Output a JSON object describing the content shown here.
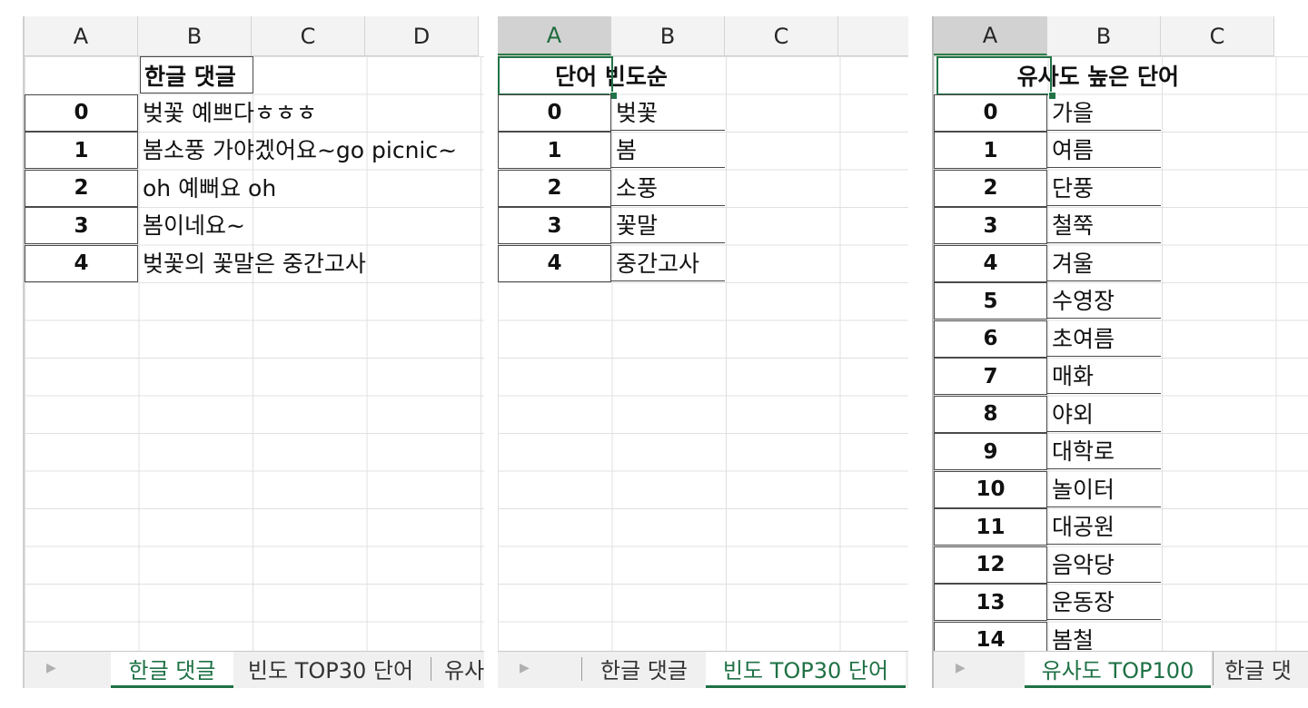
{
  "columns": [
    "A",
    "B",
    "C",
    "D"
  ],
  "sheet1": {
    "header": "한글 댓글",
    "rows": [
      {
        "idx": "0",
        "val": "벚꽃 예쁘다ㅎㅎㅎ"
      },
      {
        "idx": "1",
        "val": "봄소풍 가야겠어요~go picnic~"
      },
      {
        "idx": "2",
        "val": "oh 예뻐요 oh"
      },
      {
        "idx": "3",
        "val": "봄이네요~"
      },
      {
        "idx": "4",
        "val": "벚꽃의 꽃말은 중간고사"
      }
    ],
    "tabs": [
      "한글 댓글",
      "빈도 TOP30 단어",
      "유사"
    ]
  },
  "sheet2": {
    "header": "단어 빈도순",
    "rows": [
      {
        "idx": "0",
        "val": "벚꽃"
      },
      {
        "idx": "1",
        "val": "봄"
      },
      {
        "idx": "2",
        "val": "소풍"
      },
      {
        "idx": "3",
        "val": "꽃말"
      },
      {
        "idx": "4",
        "val": "중간고사"
      }
    ],
    "tabs": [
      "한글 댓글",
      "빈도 TOP30 단어"
    ]
  },
  "sheet3": {
    "header": "유사도 높은 단어",
    "rows": [
      {
        "idx": "0",
        "val": "가을"
      },
      {
        "idx": "1",
        "val": "여름"
      },
      {
        "idx": "2",
        "val": "단풍"
      },
      {
        "idx": "3",
        "val": "철쭉"
      },
      {
        "idx": "4",
        "val": "겨울"
      },
      {
        "idx": "5",
        "val": "수영장"
      },
      {
        "idx": "6",
        "val": "초여름"
      },
      {
        "idx": "7",
        "val": "매화"
      },
      {
        "idx": "8",
        "val": "야외"
      },
      {
        "idx": "9",
        "val": "대학로"
      },
      {
        "idx": "10",
        "val": "놀이터"
      },
      {
        "idx": "11",
        "val": "대공원"
      },
      {
        "idx": "12",
        "val": "음악당"
      },
      {
        "idx": "13",
        "val": "운동장"
      },
      {
        "idx": "14",
        "val": "봄철"
      }
    ],
    "tabs": [
      "유사도 TOP100",
      "한글 댓"
    ]
  },
  "colors": {
    "accent": "#217346",
    "grid": "#e0e0e0",
    "header_bg": "#f3f3f3"
  }
}
